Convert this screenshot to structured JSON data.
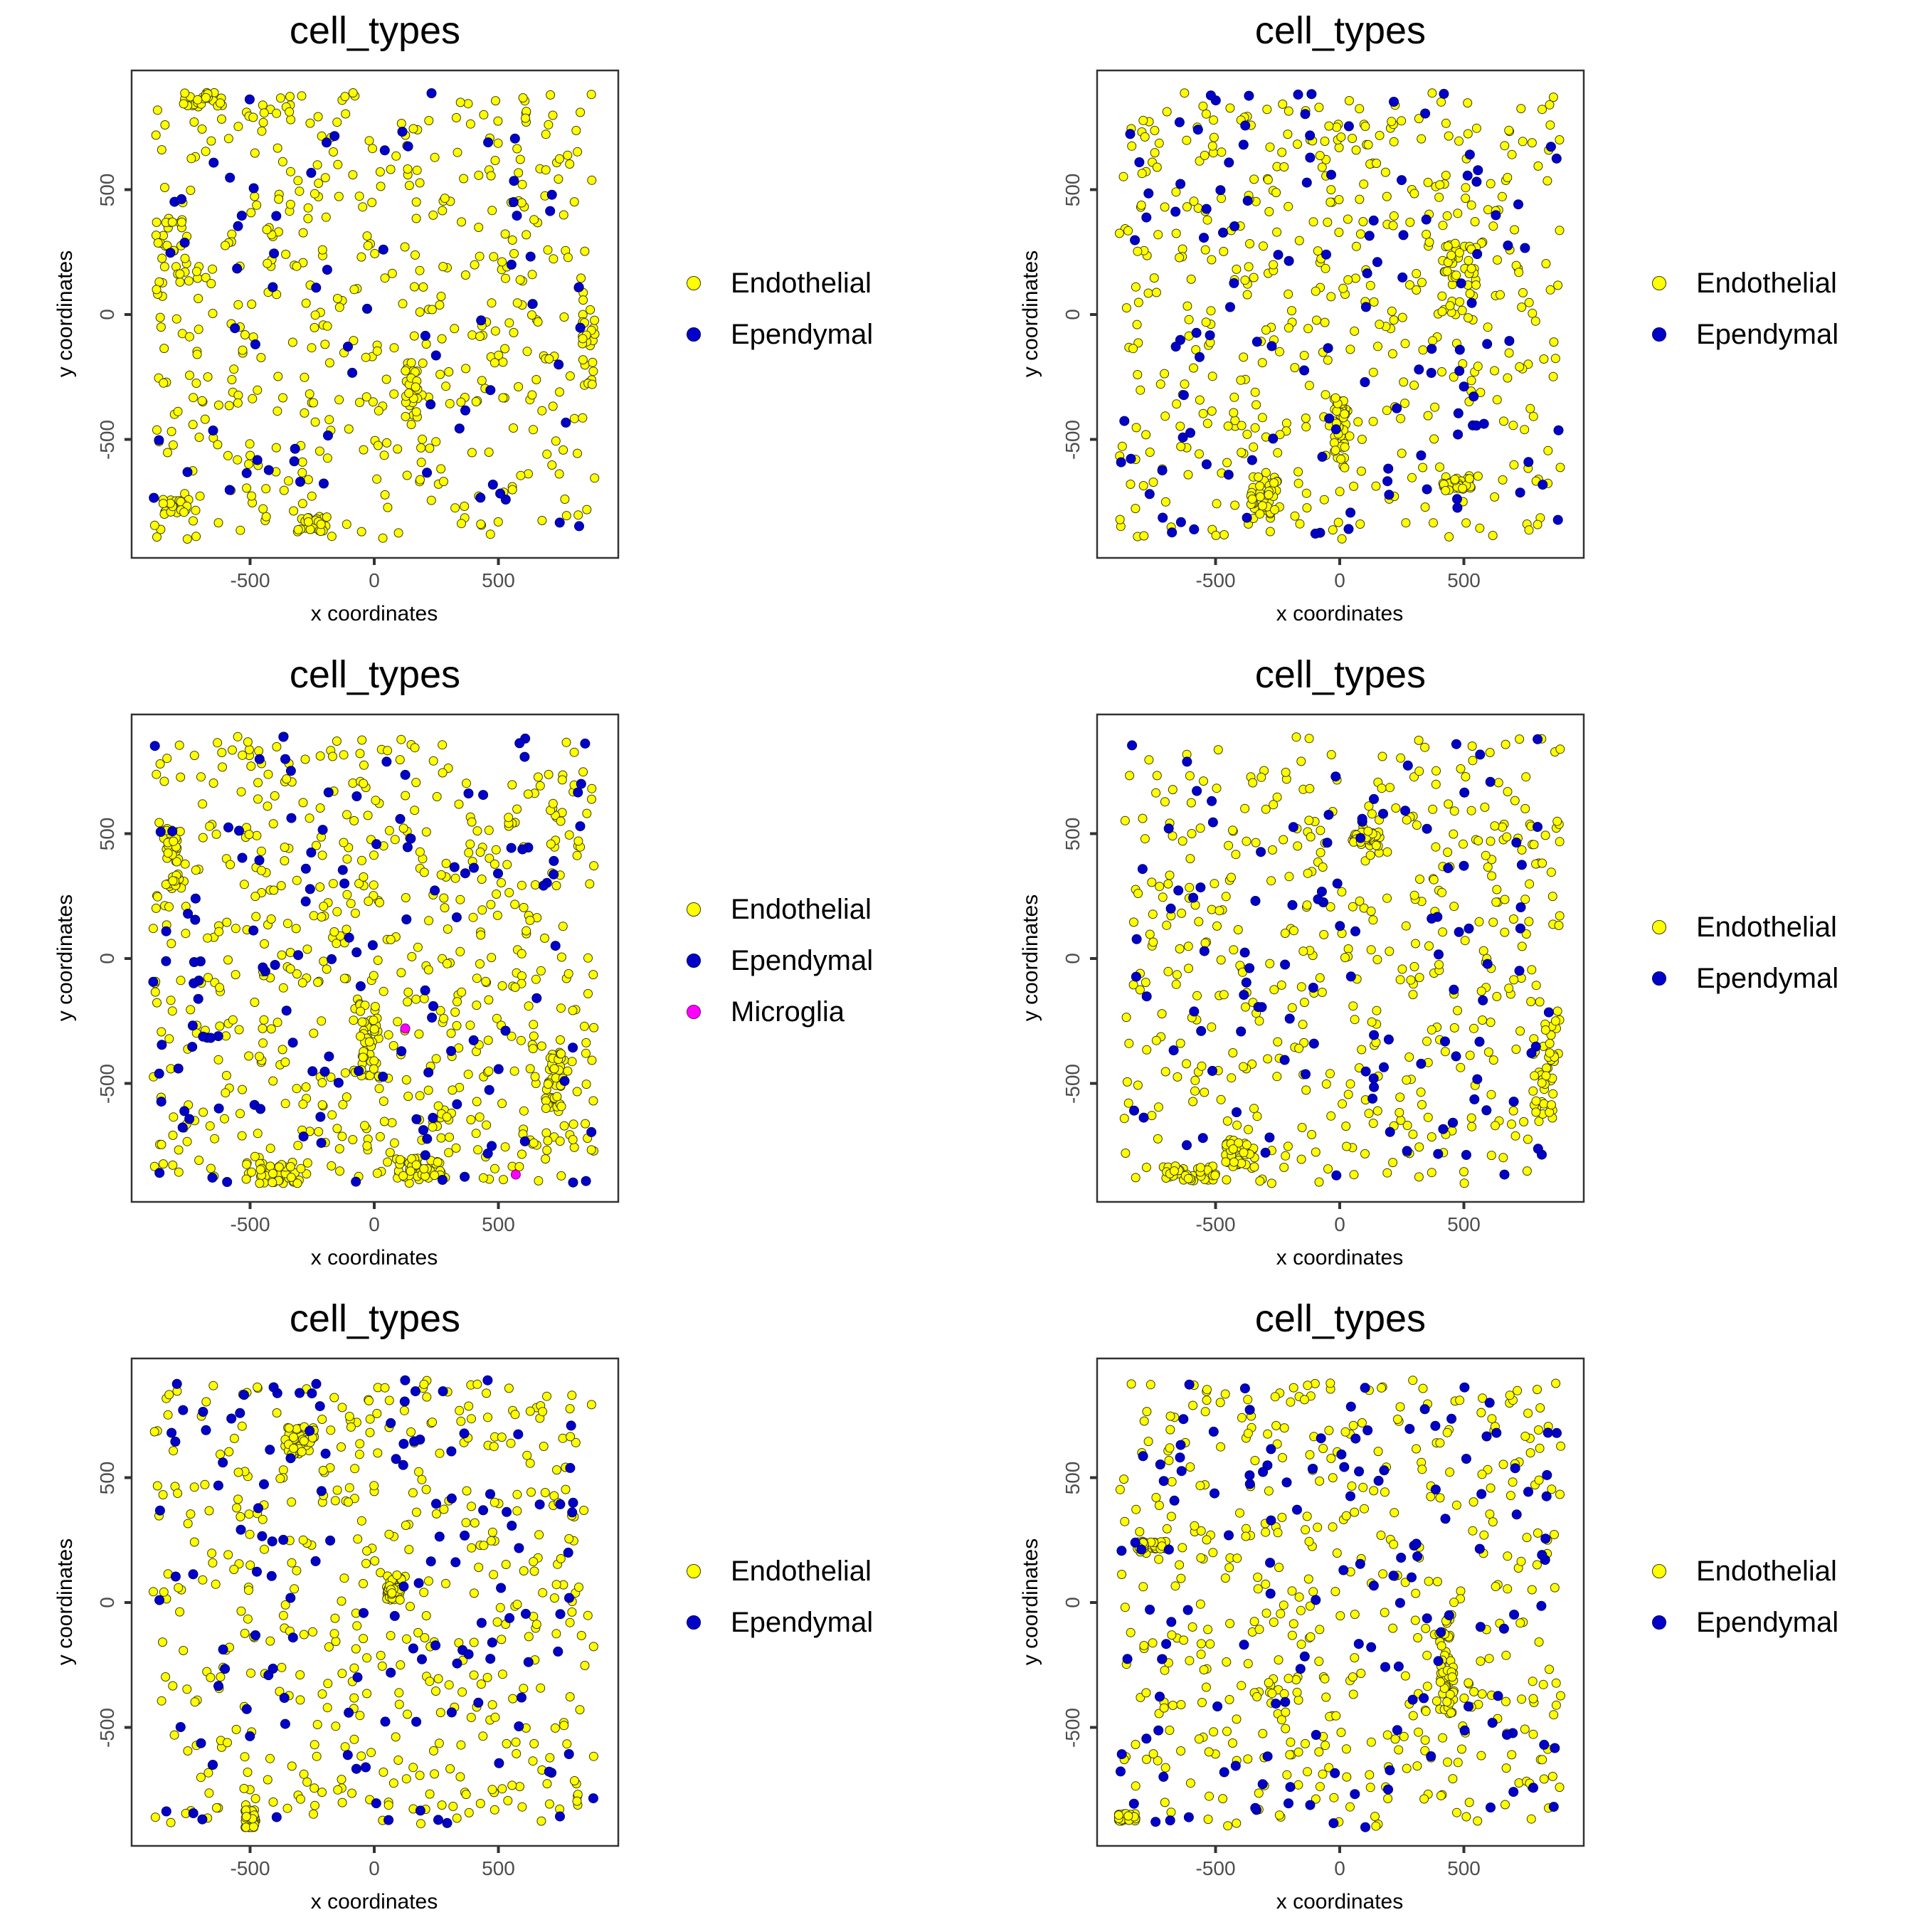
{
  "figure": {
    "colors": {
      "Endothelial": "#FFFF00",
      "Ependymal": "#0000C8",
      "Microglia": "#FF00FF",
      "outline": "#333300",
      "axis": "#333333",
      "tick_text": "#4d4d4d"
    }
  },
  "panels": [
    {
      "title": "cell_types",
      "xlabel": "x coordinates",
      "ylabel": "y coordinates",
      "xticks": [
        "-500",
        "0",
        "500"
      ],
      "yticks": [
        "500",
        "0",
        "-500"
      ],
      "legend": [
        "Endothelial",
        "Ependymal"
      ]
    },
    {
      "title": "cell_types",
      "xlabel": "x coordinates",
      "ylabel": "y coordinates",
      "xticks": [
        "-500",
        "0",
        "500"
      ],
      "yticks": [
        "500",
        "0",
        "-500"
      ],
      "legend": [
        "Endothelial",
        "Ependymal"
      ]
    },
    {
      "title": "cell_types",
      "xlabel": "x coordinates",
      "ylabel": "y coordinates",
      "xticks": [
        "-500",
        "0",
        "500"
      ],
      "yticks": [
        "500",
        "0",
        "-500"
      ],
      "legend": [
        "Endothelial",
        "Ependymal",
        "Microglia"
      ]
    },
    {
      "title": "cell_types",
      "xlabel": "x coordinates",
      "ylabel": "y coordinates",
      "xticks": [
        "-500",
        "0",
        "500"
      ],
      "yticks": [
        "500",
        "0",
        "-500"
      ],
      "legend": [
        "Endothelial",
        "Ependymal"
      ]
    },
    {
      "title": "cell_types",
      "xlabel": "x coordinates",
      "ylabel": "y coordinates",
      "xticks": [
        "-500",
        "0",
        "500"
      ],
      "yticks": [
        "500",
        "0",
        "-500"
      ],
      "legend": [
        "Endothelial",
        "Ependymal"
      ]
    },
    {
      "title": "cell_types",
      "xlabel": "x coordinates",
      "ylabel": "y coordinates",
      "xticks": [
        "-500",
        "0",
        "500"
      ],
      "yticks": [
        "500",
        "0",
        "-500"
      ],
      "legend": [
        "Endothelial",
        "Ependymal"
      ]
    }
  ],
  "chart_data": [
    {
      "type": "scatter",
      "title": "cell_types",
      "xlabel": "x coordinates",
      "ylabel": "y coordinates",
      "xlim": [
        -980,
        985
      ],
      "ylim": [
        -990,
        975
      ],
      "grid": false,
      "legend_position": "right",
      "series": [
        {
          "name": "Endothelial",
          "color": "#FFFF00",
          "approx_count": 640,
          "seed": 11,
          "clusters": [
            [
              -820,
              240,
              60,
              140
            ],
            [
              -780,
              -770,
              70,
              30
            ],
            [
              -250,
              -840,
              60,
              30
            ],
            [
              150,
              -300,
              25,
              110
            ],
            [
              860,
              -100,
              30,
              200
            ],
            [
              -690,
              860,
              80,
              30
            ]
          ]
        },
        {
          "name": "Ependymal",
          "color": "#0000C8",
          "approx_count": 70,
          "seed": 12,
          "clusters": []
        }
      ]
    },
    {
      "type": "scatter",
      "title": "cell_types",
      "xlabel": "x coordinates",
      "ylabel": "y coordinates",
      "xlim": [
        -980,
        985
      ],
      "ylim": [
        -990,
        975
      ],
      "grid": false,
      "legend_position": "right",
      "series": [
        {
          "name": "Endothelial",
          "color": "#FFFF00",
          "approx_count": 620,
          "seed": 21,
          "clusters": [
            [
              0,
              -480,
              25,
              150
            ],
            [
              480,
              -680,
              70,
              25
            ],
            [
              480,
              150,
              70,
              150
            ],
            [
              -300,
              -720,
              60,
              80
            ]
          ]
        },
        {
          "name": "Ependymal",
          "color": "#0000C8",
          "approx_count": 120,
          "seed": 22,
          "clusters": []
        }
      ]
    },
    {
      "type": "scatter",
      "title": "cell_types",
      "xlabel": "x coordinates",
      "ylabel": "y coordinates",
      "xlim": [
        -980,
        985
      ],
      "ylim": [
        -990,
        975
      ],
      "grid": false,
      "legend_position": "right",
      "series": [
        {
          "name": "Endothelial",
          "color": "#FFFF00",
          "approx_count": 780,
          "seed": 31,
          "clusters": [
            [
              -390,
              -860,
              140,
              45
            ],
            [
              180,
              -840,
              90,
              40
            ],
            [
              -20,
              -330,
              40,
              150
            ],
            [
              730,
              -500,
              40,
              120
            ],
            [
              -810,
              390,
              30,
              130
            ]
          ]
        },
        {
          "name": "Ependymal",
          "color": "#0000C8",
          "approx_count": 130,
          "seed": 32,
          "clusters": []
        },
        {
          "name": "Microglia",
          "color": "#FF00FF",
          "points": [
            [
              125,
              -280
            ],
            [
              570,
              -865
            ]
          ]
        }
      ]
    },
    {
      "type": "scatter",
      "title": "cell_types",
      "xlabel": "x coordinates",
      "ylabel": "y coordinates",
      "xlim": [
        -980,
        985
      ],
      "ylim": [
        -990,
        975
      ],
      "grid": false,
      "legend_position": "right",
      "series": [
        {
          "name": "Endothelial",
          "color": "#FFFF00",
          "approx_count": 600,
          "seed": 41,
          "clusters": [
            [
              -600,
              -860,
              100,
              30
            ],
            [
              -400,
              -780,
              60,
              60
            ],
            [
              820,
              -450,
              50,
              200
            ],
            [
              100,
              480,
              60,
              30
            ]
          ]
        },
        {
          "name": "Ependymal",
          "color": "#0000C8",
          "approx_count": 110,
          "seed": 42,
          "clusters": []
        }
      ]
    },
    {
      "type": "scatter",
      "title": "cell_types",
      "xlabel": "x coordinates",
      "ylabel": "y coordinates",
      "xlim": [
        -980,
        985
      ],
      "ylim": [
        -990,
        975
      ],
      "grid": false,
      "legend_position": "right",
      "series": [
        {
          "name": "Endothelial",
          "color": "#FFFF00",
          "approx_count": 600,
          "seed": 51,
          "clusters": [
            [
              -300,
              650,
              60,
              60
            ],
            [
              -500,
              -870,
              20,
              40
            ],
            [
              80,
              60,
              30,
              50
            ]
          ]
        },
        {
          "name": "Ependymal",
          "color": "#0000C8",
          "approx_count": 130,
          "seed": 52,
          "clusters": []
        }
      ]
    },
    {
      "type": "scatter",
      "title": "cell_types",
      "xlabel": "x coordinates",
      "ylabel": "y coordinates",
      "xlim": [
        -980,
        985
      ],
      "ylim": [
        -990,
        975
      ],
      "grid": false,
      "legend_position": "right",
      "series": [
        {
          "name": "Endothelial",
          "color": "#FFFF00",
          "approx_count": 620,
          "seed": 61,
          "clusters": [
            [
              -760,
              230,
              60,
              15
            ],
            [
              430,
              -250,
              30,
              200
            ],
            [
              -860,
              -860,
              40,
              15
            ]
          ]
        },
        {
          "name": "Ependymal",
          "color": "#0000C8",
          "approx_count": 140,
          "seed": 62,
          "clusters": []
        }
      ]
    }
  ]
}
